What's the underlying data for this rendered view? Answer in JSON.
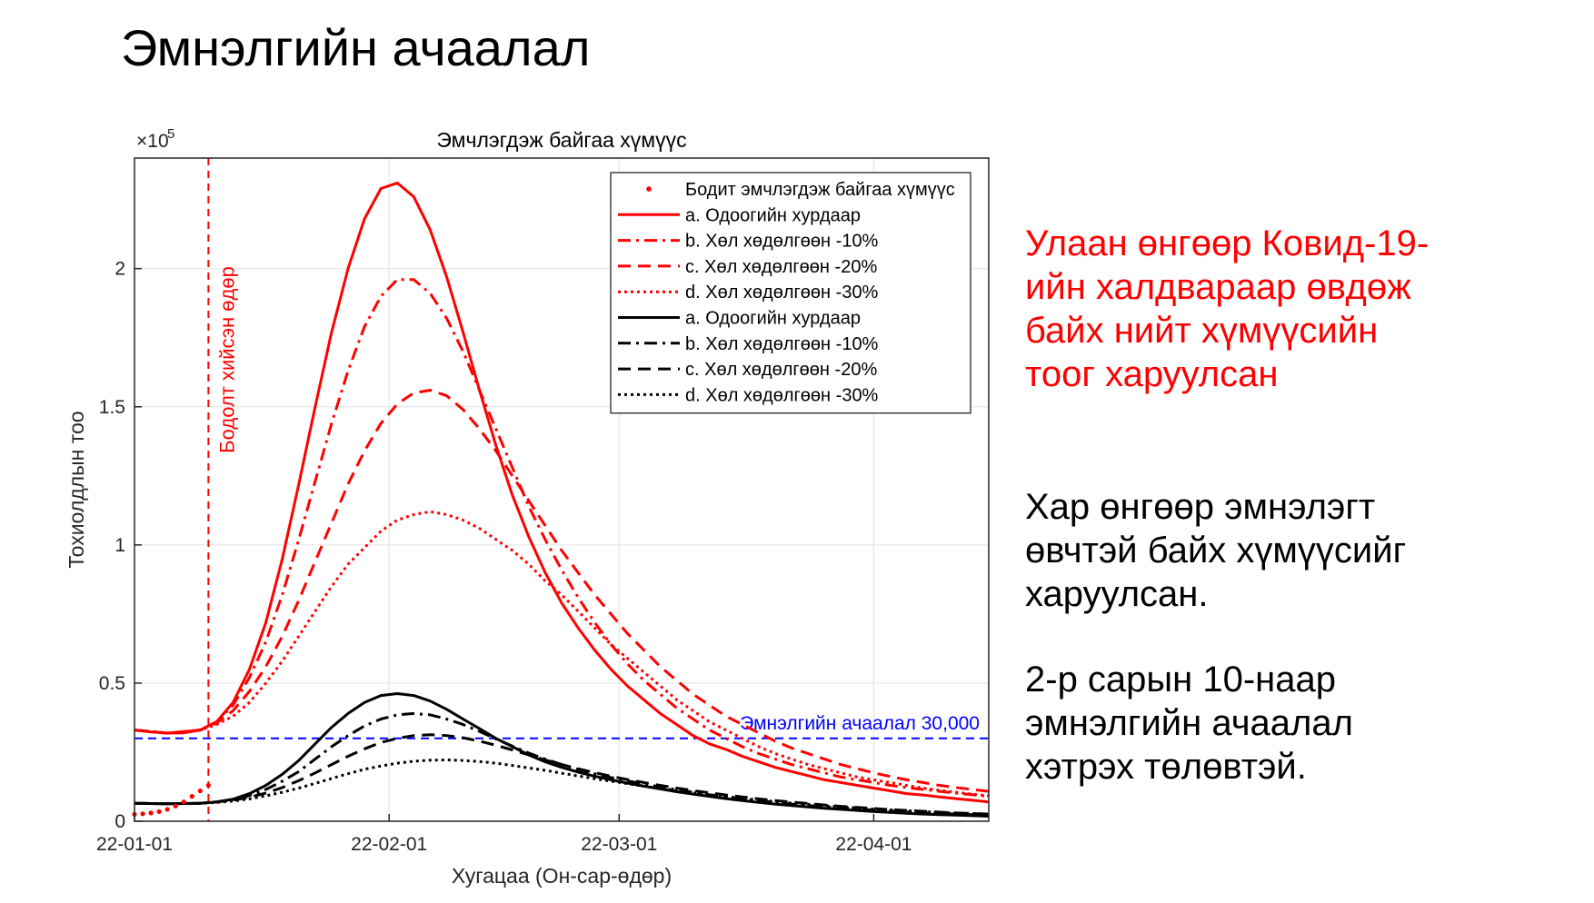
{
  "slide": {
    "title": "Эмнэлгийн ачаалал",
    "side_text_red": [
      "Улаан өнгөөр Ковид-19-",
      "ийн халдвараар өвдөж",
      "байх нийт хүмүүсийн",
      "тоог харуулсан"
    ],
    "side_text_black_1": [
      "Хар өнгөөр эмнэлэгт",
      "өвчтэй байх хүмүүсийг",
      "харуулсан."
    ],
    "side_text_black_2": [
      "2-р сарын 10-наар",
      "эмнэлгийн ачаалал",
      "хэтрэх төлөвтэй."
    ]
  },
  "colors": {
    "red": "#ff0000",
    "black": "#000000",
    "blue": "#0000ff",
    "grid": "#e6e6e6"
  },
  "chart_data": {
    "type": "line",
    "title": "Эмчлэгдэж байгаа хүмүүс",
    "xlabel": "Хугацаа (Он-сар-өдөр)",
    "ylabel": "Тохиолдлын тоо",
    "y_exponent_label": "×10",
    "y_exponent_power": "5",
    "x_ticks": [
      "22-01-01",
      "22-02-01",
      "22-03-01",
      "22-04-01"
    ],
    "x_tick_days": [
      0,
      31,
      59,
      90
    ],
    "xlim": [
      0,
      104
    ],
    "y_ticks": [
      "0",
      "0.5",
      "1",
      "1.5",
      "2"
    ],
    "y_tick_values": [
      0,
      0.5,
      1,
      1.5,
      2
    ],
    "ylim": [
      0,
      2.4
    ],
    "grid": true,
    "legend_position": "top-right",
    "decision_day": {
      "day": 9,
      "label": "Бодолт хийсэн өдөр"
    },
    "capacity": {
      "value": 0.3,
      "label": "Эмнэлгийн ачаалал 30,000"
    },
    "observed": {
      "name": "Бодит эмчлэгдэж байгаа хүмүүс",
      "x": [
        0,
        1,
        2,
        3,
        4,
        5,
        6,
        7,
        8,
        9
      ],
      "y": [
        0.025,
        0.027,
        0.03,
        0.035,
        0.043,
        0.055,
        0.07,
        0.09,
        0.11,
        0.13
      ]
    },
    "series": [
      {
        "name": "a. Одоогийн хурдаар",
        "color": "red",
        "dash": "solid",
        "x": [
          0,
          2,
          4,
          6,
          8,
          10,
          12,
          14,
          16,
          18,
          20,
          22,
          24,
          26,
          28,
          30,
          32,
          34,
          36,
          38,
          40,
          42,
          44,
          46,
          48,
          50,
          52,
          54,
          56,
          58,
          60,
          62,
          64,
          66,
          68,
          70,
          72,
          74,
          76,
          78,
          80,
          82,
          84,
          86,
          88,
          90,
          92,
          94,
          96,
          98,
          100,
          102,
          104
        ],
        "y": [
          0.33,
          0.323,
          0.319,
          0.32,
          0.33,
          0.36,
          0.43,
          0.55,
          0.72,
          0.95,
          1.22,
          1.5,
          1.77,
          2.0,
          2.18,
          2.29,
          2.31,
          2.26,
          2.14,
          1.97,
          1.77,
          1.56,
          1.36,
          1.18,
          1.03,
          0.9,
          0.79,
          0.7,
          0.62,
          0.55,
          0.49,
          0.44,
          0.39,
          0.35,
          0.31,
          0.28,
          0.26,
          0.235,
          0.215,
          0.195,
          0.18,
          0.165,
          0.15,
          0.14,
          0.13,
          0.12,
          0.11,
          0.1,
          0.095,
          0.088,
          0.082,
          0.076,
          0.07
        ]
      },
      {
        "name": "b. Хөл хөдөлгөөн -10%",
        "color": "red",
        "dash": "dashdot",
        "x": [
          0,
          4,
          8,
          10,
          12,
          14,
          16,
          18,
          20,
          22,
          24,
          26,
          28,
          30,
          32,
          34,
          36,
          38,
          40,
          42,
          44,
          46,
          48,
          50,
          52,
          54,
          56,
          58,
          60,
          62,
          64,
          66,
          68,
          70,
          72,
          74,
          76,
          78,
          80,
          82,
          84,
          86,
          88,
          90,
          92,
          94,
          96,
          98,
          100,
          102,
          104
        ],
        "y": [
          0.33,
          0.319,
          0.33,
          0.36,
          0.42,
          0.52,
          0.65,
          0.82,
          1.02,
          1.23,
          1.44,
          1.63,
          1.79,
          1.9,
          1.96,
          1.96,
          1.91,
          1.82,
          1.7,
          1.56,
          1.42,
          1.28,
          1.14,
          1.02,
          0.91,
          0.81,
          0.72,
          0.64,
          0.57,
          0.51,
          0.46,
          0.41,
          0.37,
          0.33,
          0.3,
          0.27,
          0.245,
          0.225,
          0.205,
          0.19,
          0.175,
          0.16,
          0.15,
          0.14,
          0.13,
          0.122,
          0.115,
          0.108,
          0.102,
          0.096,
          0.09
        ]
      },
      {
        "name": "c. Хөл хөдөлгөөн -20%",
        "color": "red",
        "dash": "dash",
        "x": [
          0,
          4,
          8,
          10,
          12,
          14,
          16,
          18,
          20,
          22,
          24,
          26,
          28,
          30,
          32,
          34,
          36,
          38,
          40,
          42,
          44,
          46,
          48,
          50,
          52,
          54,
          56,
          58,
          60,
          62,
          64,
          66,
          68,
          70,
          72,
          74,
          76,
          78,
          80,
          82,
          84,
          86,
          88,
          90,
          92,
          94,
          96,
          98,
          100,
          102,
          104
        ],
        "y": [
          0.33,
          0.319,
          0.33,
          0.355,
          0.4,
          0.47,
          0.56,
          0.67,
          0.8,
          0.94,
          1.08,
          1.22,
          1.34,
          1.44,
          1.51,
          1.55,
          1.56,
          1.54,
          1.49,
          1.42,
          1.34,
          1.25,
          1.16,
          1.07,
          0.98,
          0.9,
          0.82,
          0.75,
          0.68,
          0.62,
          0.56,
          0.51,
          0.46,
          0.42,
          0.38,
          0.35,
          0.32,
          0.29,
          0.265,
          0.245,
          0.225,
          0.205,
          0.19,
          0.175,
          0.162,
          0.15,
          0.14,
          0.13,
          0.122,
          0.115,
          0.108
        ]
      },
      {
        "name": "d. Хөл хөдөлгөөн -30%",
        "color": "red",
        "dash": "dot",
        "x": [
          0,
          4,
          8,
          10,
          12,
          14,
          16,
          18,
          20,
          22,
          24,
          26,
          28,
          30,
          32,
          34,
          36,
          38,
          40,
          42,
          44,
          46,
          48,
          50,
          52,
          54,
          56,
          58,
          60,
          62,
          64,
          66,
          68,
          70,
          72,
          74,
          76,
          78,
          80,
          82,
          84,
          86,
          88,
          90,
          92,
          94,
          96,
          98,
          100,
          102,
          104
        ],
        "y": [
          0.33,
          0.319,
          0.33,
          0.35,
          0.38,
          0.43,
          0.5,
          0.58,
          0.67,
          0.76,
          0.85,
          0.93,
          0.99,
          1.05,
          1.09,
          1.11,
          1.12,
          1.11,
          1.09,
          1.06,
          1.02,
          0.98,
          0.93,
          0.87,
          0.82,
          0.76,
          0.7,
          0.64,
          0.59,
          0.54,
          0.49,
          0.44,
          0.4,
          0.36,
          0.33,
          0.3,
          0.27,
          0.245,
          0.225,
          0.205,
          0.19,
          0.175,
          0.16,
          0.15,
          0.14,
          0.13,
          0.12,
          0.112,
          0.105,
          0.098,
          0.092
        ]
      },
      {
        "name": "a. Одоогийн хурдаар",
        "color": "black",
        "dash": "solid",
        "x": [
          0,
          4,
          8,
          10,
          12,
          14,
          16,
          18,
          20,
          22,
          24,
          26,
          28,
          30,
          32,
          34,
          36,
          38,
          40,
          42,
          44,
          46,
          48,
          50,
          52,
          54,
          56,
          58,
          60,
          62,
          64,
          66,
          68,
          70,
          72,
          74,
          76,
          78,
          80,
          82,
          84,
          86,
          88,
          90,
          92,
          94,
          96,
          98,
          100,
          102,
          104
        ],
        "y": [
          0.065,
          0.063,
          0.065,
          0.07,
          0.08,
          0.1,
          0.13,
          0.17,
          0.22,
          0.28,
          0.34,
          0.39,
          0.43,
          0.455,
          0.462,
          0.455,
          0.435,
          0.405,
          0.37,
          0.335,
          0.3,
          0.27,
          0.24,
          0.215,
          0.195,
          0.178,
          0.163,
          0.15,
          0.138,
          0.127,
          0.117,
          0.107,
          0.098,
          0.09,
          0.082,
          0.075,
          0.068,
          0.062,
          0.057,
          0.052,
          0.047,
          0.043,
          0.039,
          0.035,
          0.032,
          0.029,
          0.026,
          0.024,
          0.022,
          0.02,
          0.018
        ]
      },
      {
        "name": "b. Хөл хөдөлгөөн -10%",
        "color": "black",
        "dash": "dashdot",
        "x": [
          0,
          4,
          8,
          10,
          12,
          14,
          16,
          18,
          20,
          22,
          24,
          26,
          28,
          30,
          32,
          34,
          36,
          38,
          40,
          42,
          44,
          46,
          48,
          50,
          52,
          54,
          56,
          58,
          60,
          62,
          64,
          66,
          68,
          70,
          72,
          74,
          76,
          78,
          80,
          82,
          84,
          86,
          88,
          90,
          92,
          94,
          96,
          98,
          100,
          102,
          104
        ],
        "y": [
          0.065,
          0.063,
          0.065,
          0.07,
          0.078,
          0.093,
          0.115,
          0.145,
          0.18,
          0.225,
          0.27,
          0.31,
          0.345,
          0.37,
          0.385,
          0.39,
          0.385,
          0.37,
          0.35,
          0.325,
          0.298,
          0.272,
          0.247,
          0.225,
          0.205,
          0.188,
          0.172,
          0.158,
          0.146,
          0.135,
          0.124,
          0.114,
          0.105,
          0.096,
          0.088,
          0.081,
          0.074,
          0.068,
          0.062,
          0.057,
          0.052,
          0.048,
          0.044,
          0.04,
          0.037,
          0.034,
          0.031,
          0.028,
          0.026,
          0.024,
          0.022
        ]
      },
      {
        "name": "c. Хөл хөдөлгөөн -20%",
        "color": "black",
        "dash": "dash",
        "x": [
          0,
          4,
          8,
          10,
          12,
          14,
          16,
          18,
          20,
          22,
          24,
          26,
          28,
          30,
          32,
          34,
          36,
          38,
          40,
          42,
          44,
          46,
          48,
          50,
          52,
          54,
          56,
          58,
          60,
          62,
          64,
          66,
          68,
          70,
          72,
          74,
          76,
          78,
          80,
          82,
          84,
          86,
          88,
          90,
          92,
          94,
          96,
          98,
          100,
          102,
          104
        ],
        "y": [
          0.065,
          0.063,
          0.065,
          0.07,
          0.076,
          0.087,
          0.102,
          0.122,
          0.147,
          0.175,
          0.205,
          0.235,
          0.262,
          0.285,
          0.3,
          0.31,
          0.313,
          0.31,
          0.302,
          0.29,
          0.275,
          0.258,
          0.24,
          0.222,
          0.205,
          0.19,
          0.176,
          0.163,
          0.151,
          0.14,
          0.13,
          0.12,
          0.111,
          0.103,
          0.095,
          0.088,
          0.081,
          0.075,
          0.069,
          0.064,
          0.059,
          0.054,
          0.05,
          0.046,
          0.042,
          0.039,
          0.036,
          0.033,
          0.03,
          0.028,
          0.026
        ]
      },
      {
        "name": "d. Хөл хөдөлгөөн -30%",
        "color": "black",
        "dash": "dot",
        "x": [
          0,
          4,
          8,
          10,
          12,
          14,
          16,
          18,
          20,
          22,
          24,
          26,
          28,
          30,
          32,
          34,
          36,
          38,
          40,
          42,
          44,
          46,
          48,
          50,
          52,
          54,
          56,
          58,
          60,
          62,
          64,
          66,
          68,
          70,
          72,
          74,
          76,
          78,
          80,
          82,
          84,
          86,
          88,
          90,
          92,
          94,
          96,
          98,
          100,
          102,
          104
        ],
        "y": [
          0.065,
          0.063,
          0.065,
          0.068,
          0.073,
          0.081,
          0.092,
          0.105,
          0.12,
          0.137,
          0.155,
          0.172,
          0.188,
          0.2,
          0.21,
          0.217,
          0.221,
          0.222,
          0.22,
          0.216,
          0.21,
          0.202,
          0.193,
          0.184,
          0.174,
          0.164,
          0.154,
          0.145,
          0.136,
          0.127,
          0.119,
          0.111,
          0.103,
          0.096,
          0.089,
          0.083,
          0.077,
          0.071,
          0.066,
          0.061,
          0.056,
          0.052,
          0.048,
          0.044,
          0.041,
          0.038,
          0.035,
          0.032,
          0.03,
          0.028,
          0.026
        ]
      }
    ]
  }
}
